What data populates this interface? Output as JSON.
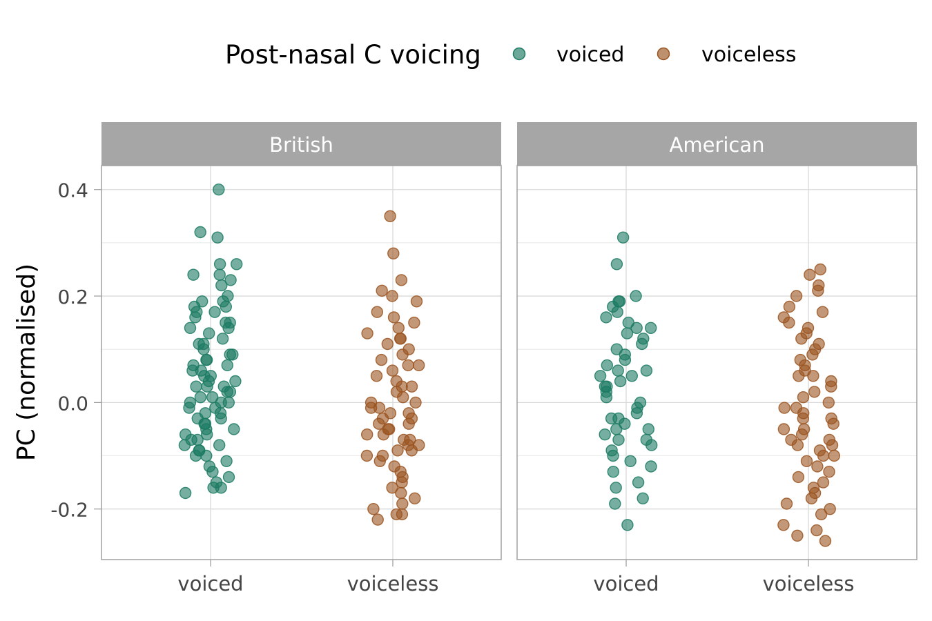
{
  "legend": {
    "title": "Post-nasal C voicing",
    "items": [
      {
        "label": "voiced",
        "color": "#1b7a62"
      },
      {
        "label": "voiceless",
        "color": "#9a5420"
      }
    ]
  },
  "chart_data": {
    "type": "scatter",
    "style": "jitter strip plot, faceted",
    "ylabel": "PC (normalised)",
    "ylim": [
      -0.295,
      0.445
    ],
    "yticks": [
      -0.2,
      0.0,
      0.2,
      0.4
    ],
    "ytick_labels": [
      "-0.2",
      "0.0",
      "0.2",
      "0.4"
    ],
    "categories": [
      "voiced",
      "voiceless"
    ],
    "grid": true,
    "legend_position": "top",
    "panels": [
      {
        "title": "British",
        "series": [
          {
            "name": "voiced",
            "y": [
              0.4,
              0.32,
              0.31,
              0.26,
              0.26,
              0.24,
              0.24,
              0.23,
              0.22,
              0.2,
              0.19,
              0.19,
              0.18,
              0.18,
              0.17,
              0.17,
              0.16,
              0.15,
              0.15,
              0.14,
              0.14,
              0.13,
              0.12,
              0.11,
              0.11,
              0.1,
              0.09,
              0.09,
              0.08,
              0.08,
              0.07,
              0.07,
              0.06,
              0.06,
              0.05,
              0.05,
              0.04,
              0.04,
              0.03,
              0.03,
              0.03,
              0.02,
              0.02,
              0.01,
              0.01,
              0.0,
              0.0,
              0.0,
              -0.01,
              -0.01,
              -0.02,
              -0.02,
              -0.03,
              -0.03,
              -0.04,
              -0.04,
              -0.05,
              -0.05,
              -0.06,
              -0.06,
              -0.07,
              -0.07,
              -0.08,
              -0.08,
              -0.09,
              -0.09,
              -0.1,
              -0.1,
              -0.11,
              -0.12,
              -0.13,
              -0.14,
              -0.15,
              -0.16,
              -0.17,
              -0.16
            ]
          },
          {
            "name": "voiceless",
            "y": [
              0.35,
              0.28,
              0.23,
              0.21,
              0.2,
              0.19,
              0.17,
              0.16,
              0.15,
              0.14,
              0.13,
              0.12,
              0.12,
              0.11,
              0.1,
              0.09,
              0.08,
              0.07,
              0.07,
              0.06,
              0.05,
              0.04,
              0.03,
              0.03,
              0.02,
              0.01,
              0.0,
              0.0,
              -0.01,
              -0.01,
              -0.02,
              -0.02,
              -0.03,
              -0.03,
              -0.04,
              -0.04,
              -0.05,
              -0.05,
              -0.06,
              -0.06,
              -0.07,
              -0.07,
              -0.08,
              -0.08,
              -0.09,
              -0.09,
              -0.1,
              -0.1,
              -0.11,
              -0.12,
              -0.13,
              -0.14,
              -0.15,
              -0.16,
              -0.17,
              -0.18,
              -0.19,
              -0.2,
              -0.21,
              -0.22,
              -0.21
            ]
          }
        ]
      },
      {
        "title": "American",
        "series": [
          {
            "name": "voiced",
            "y": [
              0.31,
              0.26,
              0.2,
              0.19,
              0.19,
              0.18,
              0.17,
              0.16,
              0.15,
              0.14,
              0.14,
              0.13,
              0.12,
              0.11,
              0.1,
              0.09,
              0.08,
              0.07,
              0.06,
              0.06,
              0.05,
              0.05,
              0.04,
              0.03,
              0.03,
              0.02,
              0.01,
              0.0,
              -0.01,
              -0.02,
              -0.03,
              -0.03,
              -0.04,
              -0.05,
              -0.05,
              -0.06,
              -0.07,
              -0.07,
              -0.08,
              -0.09,
              -0.1,
              -0.11,
              -0.12,
              -0.13,
              -0.15,
              -0.16,
              -0.18,
              -0.19,
              -0.23
            ]
          },
          {
            "name": "voiceless",
            "y": [
              0.25,
              0.24,
              0.22,
              0.21,
              0.2,
              0.18,
              0.17,
              0.16,
              0.15,
              0.14,
              0.13,
              0.12,
              0.11,
              0.1,
              0.09,
              0.08,
              0.07,
              0.06,
              0.05,
              0.05,
              0.04,
              0.03,
              0.02,
              0.01,
              0.0,
              -0.01,
              -0.01,
              -0.02,
              -0.03,
              -0.03,
              -0.04,
              -0.05,
              -0.05,
              -0.06,
              -0.07,
              -0.07,
              -0.08,
              -0.08,
              -0.09,
              -0.1,
              -0.1,
              -0.11,
              -0.12,
              -0.13,
              -0.14,
              -0.15,
              -0.16,
              -0.17,
              -0.18,
              -0.19,
              -0.2,
              -0.21,
              -0.23,
              -0.24,
              -0.25,
              -0.26
            ]
          }
        ]
      }
    ]
  }
}
